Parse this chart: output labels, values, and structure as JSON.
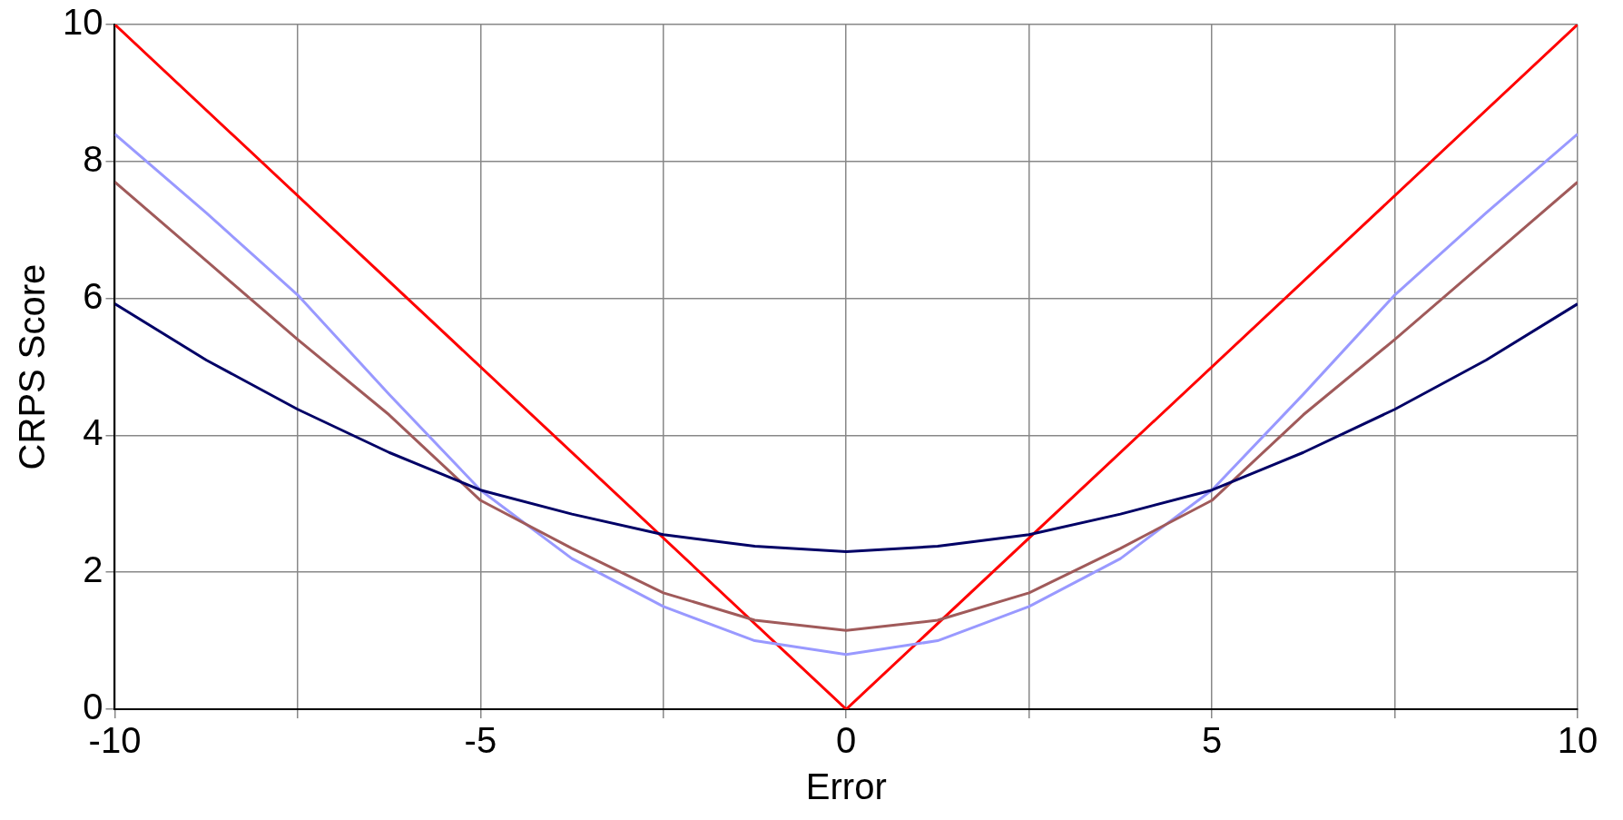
{
  "chart_data": {
    "type": "line",
    "xlabel": "Error",
    "ylabel": "CRPS Score",
    "xlim": [
      -10,
      10
    ],
    "ylim": [
      0,
      10
    ],
    "xticks": [
      -10,
      {
        "value": -7.5,
        "label": null
      },
      -5,
      {
        "value": -2.5,
        "label": null
      },
      0,
      {
        "value": 2.5,
        "label": null
      },
      5,
      {
        "value": 7.5,
        "label": null
      },
      10
    ],
    "yticks": [
      0,
      2,
      4,
      6,
      8,
      10
    ],
    "grid": true,
    "legend": false,
    "marker": "none",
    "line_style": "solid",
    "series": [
      {
        "color": "#000066",
        "x": [
          -10,
          -8.75,
          -7.5,
          -6.25,
          -5,
          -3.75,
          -2.5,
          -1.25,
          0,
          1.25,
          2.5,
          3.75,
          5,
          6.25,
          7.5,
          8.75,
          10
        ],
        "values": [
          5.92,
          5.1,
          4.38,
          3.75,
          3.2,
          2.85,
          2.55,
          2.38,
          2.3,
          2.38,
          2.55,
          2.85,
          3.2,
          3.75,
          4.38,
          5.1,
          5.92
        ]
      },
      {
        "color": "#a05a5a",
        "x": [
          -10,
          -8.75,
          -7.5,
          -6.25,
          -5,
          -3.75,
          -2.5,
          -1.25,
          0,
          1.25,
          2.5,
          3.75,
          5,
          6.25,
          7.5,
          8.75,
          10
        ],
        "values": [
          7.7,
          6.55,
          5.4,
          4.3,
          3.05,
          2.35,
          1.7,
          1.3,
          1.15,
          1.3,
          1.7,
          2.35,
          3.05,
          4.3,
          5.4,
          6.55,
          7.7
        ]
      },
      {
        "color": "#9999ff",
        "x": [
          -10,
          -8.75,
          -7.5,
          -6.25,
          -5,
          -3.75,
          -2.5,
          -1.25,
          0,
          1.25,
          2.5,
          3.75,
          5,
          6.25,
          7.5,
          8.75,
          10
        ],
        "values": [
          8.4,
          7.25,
          6.05,
          4.6,
          3.2,
          2.2,
          1.5,
          1.0,
          0.8,
          1.0,
          1.5,
          2.2,
          3.2,
          4.6,
          6.05,
          7.25,
          8.4
        ]
      },
      {
        "color": "#ff0000",
        "x": [
          -10,
          0,
          10
        ],
        "values": [
          10,
          0,
          10
        ]
      }
    ]
  }
}
